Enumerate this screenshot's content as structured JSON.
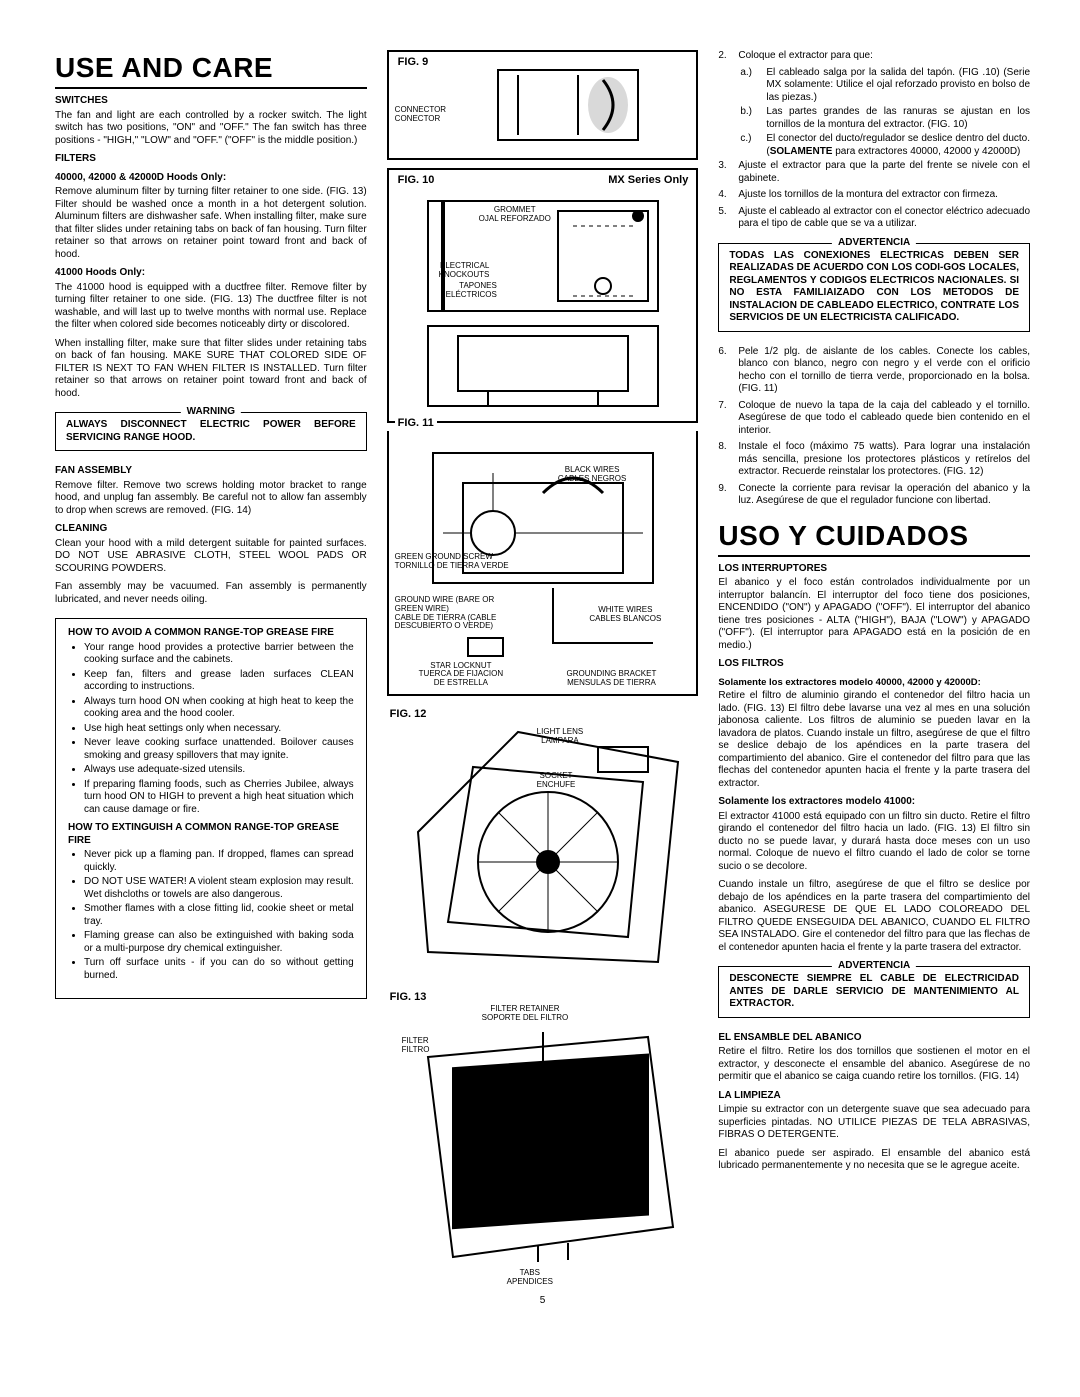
{
  "page_number": "5",
  "col1": {
    "title": "USE AND CARE",
    "switches_h": "SWITCHES",
    "switches_p": "The fan and light are each controlled by a rocker switch. The light switch has two positions, \"ON\" and \"OFF.\" The fan switch has three positions - \"HIGH,\" \"LOW\" and \"OFF.\" (\"OFF\" is the middle position.)",
    "filters_h": "FILTERS",
    "filters_sub1": "40000, 42000  & 42000D Hoods Only:",
    "filters_p1": "Remove aluminum filter by turning filter retainer to one side. (FIG. 13) Filter should be washed once a month in a hot detergent solution. Aluminum filters are dishwasher safe. When installing filter, make sure that filter slides under retaining tabs on back of fan housing. Turn filter retainer so that arrows on retainer point toward front and back of hood.",
    "filters_sub2": "41000 Hoods Only:",
    "filters_p2": "The 41000 hood is equipped with a ductfree filter. Remove filter by turning filter retainer to one side. (FIG. 13) The ductfree filter is not washable, and will last up to twelve months with normal use. Replace the filter when colored side becomes noticeably dirty or discolored.",
    "filters_p3": "When installing filter, make sure that filter slides under retaining tabs on back of fan housing. MAKE SURE THAT COLORED SIDE OF FILTER IS NEXT TO FAN WHEN FILTER IS INSTALLED. Turn filter retainer so that arrows on retainer point toward front and back of hood.",
    "warn1_label": "WARNING",
    "warn1_body": "ALWAYS DISCONNECT ELECTRIC POWER BEFORE SERVICING RANGE HOOD.",
    "fan_h": "FAN ASSEMBLY",
    "fan_p": "Remove filter. Remove two screws holding motor bracket to range hood, and unplug fan assembly. Be careful not to allow fan assembly to drop when screws are removed. (FIG. 14)",
    "clean_h": "CLEANING",
    "clean_p1": "Clean your hood with a mild detergent suitable for painted surfaces. DO NOT USE ABRASIVE CLOTH, STEEL WOOL PADS OR SCOURING POWDERS.",
    "clean_p2": "Fan assembly may be vacuumed. Fan assembly is permanently lubricated, and never needs oiling.",
    "avoid_h": "HOW TO AVOID A COMMON RANGE-TOP GREASE FIRE",
    "avoid_items": [
      "Your range hood provides a protective barrier between the cooking surface and the cabinets.",
      "Keep fan, filters and grease laden surfaces CLEAN according to instructions.",
      "Always turn hood ON when cooking at high heat to keep the cooking area and the hood cooler.",
      "Use high heat settings only when necessary.",
      "Never leave cooking surface unattended. Boilover causes smoking and greasy spillovers that may ignite.",
      "Always use adequate-sized utensils.",
      "If preparing flaming foods, such as Cherries Jubilee, always turn hood ON to HIGH to prevent a high heat situation which can cause damage or fire."
    ],
    "ext_h": "HOW TO EXTINGUISH A COMMON RANGE-TOP GREASE FIRE",
    "ext_items": [
      "Never pick up a flaming pan. If dropped, flames can spread quickly.",
      "DO NOT USE WATER!  A violent steam explosion may result. Wet dishcloths or towels are also dangerous.",
      "Smother flames with a close fitting lid, cookie sheet or metal tray.",
      "Flaming grease can also be extinguished with baking soda or a multi-purpose dry chemical extinguisher.",
      "Turn off surface units - if you can do so without getting burned."
    ]
  },
  "col2": {
    "fig9": "FIG. 9",
    "fig9_l1": "CONNECTOR",
    "fig9_l2": "CONECTOR",
    "fig10": "FIG. 10",
    "fig10_r": "MX Series Only",
    "fig10_l1": "GROMMET",
    "fig10_l2": "OJAL REFORZADO",
    "fig10_l3": "ELECTRICAL\nKNOCKOUTS",
    "fig10_l4": "TAPONES\nELÉCTRICOS",
    "fig11": "FIG. 11",
    "fig11_l1": "BLACK WIRES\nCABLES NEGROS",
    "fig11_l2": "GREEN GROUND SCREW\nTORNILLO DE TIERRA VERDE",
    "fig11_l3": "GROUND WIRE (BARE OR\nGREEN WIRE)\nCABLE DE TIERRA (CABLE\nDESCUBIERTO O VERDE)",
    "fig11_l4": "WHITE WIRES\nCABLES BLANCOS",
    "fig11_l5": "STAR LOCKNUT\nTUERCA DE FIJACION\nDE ESTRELLA",
    "fig11_l6": "GROUNDING BRACKET\nMENSULAS DE TIERRA",
    "fig12": "FIG. 12",
    "fig12_l1": "LIGHT LENS\nLAMPARA",
    "fig12_l2": "SOCKET\nENCHUFE",
    "fig13": "FIG. 13",
    "fig13_l1": "FILTER RETAINER\nSOPORTE DEL FILTRO",
    "fig13_l2": "FILTER\nFILTRO",
    "fig13_l3": "TABS\nAPENDICES"
  },
  "col3": {
    "step2": "Coloque el extractor para que:",
    "step2a": "El cableado salga por la salida del tapón. (FIG .10) (Serie MX solamente: Utilice el ojal reforzado provisto en bolso de las piezas.)",
    "step2b": "Las partes grandes de las ranuras se ajustan en los tornillos de la montura del extractor. (FIG. 10)",
    "step2c": "El conector del ducto/regulador se deslice dentro del ducto. (SOLAMENTE para extractores 40000, 42000 y 42000D)",
    "step3": "Ajuste el extractor para que la parte del frente se nivele con el gabinete.",
    "step4": "Ajuste los tornillos de la montura del extractor con firmeza.",
    "step5": "Ajuste el cableado al extractor con el conector eléctrico adecuado para el tipo de cable que se va a utilizar.",
    "adv1_label": "ADVERTENCIA",
    "adv1_body": "TODAS LAS CONEXIONES ELECTRICAS DEBEN SER REALIZADAS DE ACUERDO CON LOS CODI-GOS LOCALES, REGLAMENTOS Y CODIGOS ELECTRICOS NACIONALES. SI NO ESTA FAMILIAIZADO CON LOS METODOS DE INSTALACION DE CABLEADO ELECTRICO, CONTRATE LOS SERVICIOS DE UN ELECTRICISTA CALIFICADO.",
    "step6": "Pele 1/2 plg. de aislante de los cables. Conecte los cables, blanco con blanco, negro con negro y el verde con el orificio hecho con el tornillo de tierra verde, proporcionado en la bolsa. (FIG. 11)",
    "step7": "Coloque de nuevo la tapa de la caja del cableado y el tornillo. Asegúrese de que todo el cableado quede bien contenido en el interior.",
    "step8": "Instale el foco (máximo 75 watts). Para lograr una instalación más sencilla, presione los protectores plásticos y retírelos del extractor. Recuerde reinstalar los protectores. (FIG. 12)",
    "step9": "Conecte la corriente para revisar la operación del abanico y la luz. Asegúrese de que el regulador funcione con libertad.",
    "title": "USO Y CUIDADOS",
    "int_h": "LOS INTERRUPTORES",
    "int_p": "El abanico y el foco están controlados individualmente por un interruptor balancín. El interruptor del foco tiene dos posiciones, ENCENDIDO (\"ON\") y APAGADO (\"OFF\"). El interruptor del abanico tiene tres posiciones - ALTA (\"HIGH\"), BAJA (\"LOW\") y APAGADO (\"OFF\"). (El interruptor para APAGADO está en la posición de en medio.)",
    "fil_h": "LOS FILTROS",
    "fil_sub1": "Solamente los extractores modelo 40000, 42000 y 42000D:",
    "fil_p1": "Retire el filtro de aluminio girando el contenedor del filtro hacia un lado. (FIG. 13) El filtro debe lavarse una vez al mes en una solución jabonosa caliente. Los filtros de aluminio se pueden lavar en la lavadora de platos. Cuando instale un filtro, asegúrese de que el filtro se deslice debajo de los apéndices en la parte trasera del compartimiento del abanico. Gire el contenedor del filtro para que las flechas del contenedor apunten hacia el frente y la parte trasera del extractor.",
    "fil_sub2": "Solamente los extractores modelo 41000:",
    "fil_p2": "El extractor 41000 está equipado con un filtro sin ducto. Retire el filtro girando el contenedor del filtro hacia un lado. (FIG. 13) El filtro sin ducto no se puede lavar, y durará hasta doce meses con un uso normal. Coloque de nuevo el filtro cuando el lado de color se torne sucio o se decolore.",
    "fil_p3": "Cuando instale un filtro, asegúrese de que el filtro se deslice por debajo de los apéndices en la parte trasera del compartimiento del abanico. ASEGURESE DE QUE EL LADO COLOREADO DEL FILTRO QUEDE ENSEGUIDA DEL ABANICO, CUANDO EL FILTRO SEA INSTALADO. Gire el contenedor del filtro para que las flechas de el contenedor apunten hacia el frente y la parte trasera del extractor.",
    "adv2_label": "ADVERTENCIA",
    "adv2_body": "DESCONECTE SIEMPRE EL CABLE DE ELECTRICIDAD ANTES DE DARLE SERVICIO DE MANTENIMIENTO AL EXTRACTOR.",
    "ens_h": "EL ENSAMBLE DEL ABANICO",
    "ens_p": "Retire el filtro. Retire los dos tornillos que sostienen el motor en el extractor, y desconecte el ensamble del abanico. Asegúrese de no permitir que el abanico se caiga cuando retire los tornillos. (FIG. 14)",
    "lim_h": "LA LIMPIEZA",
    "lim_p1": "Limpie su extractor con un detergente suave que sea adecuado para superficies pintadas. NO UTILICE PIEZAS DE TELA  ABRASIVAS, FIBRAS O DETERGENTE.",
    "lim_p2": "El abanico puede ser aspirado. El ensamble del abanico está lubricado permanentemente y no necesita que se le agregue aceite."
  }
}
